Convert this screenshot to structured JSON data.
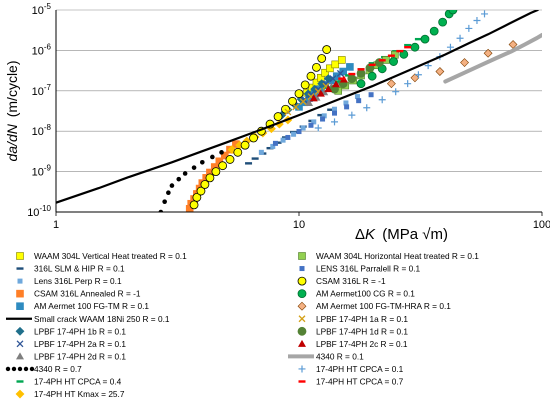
{
  "chart_data": {
    "type": "scatter",
    "title": "",
    "x_scale": "log",
    "y_scale": "log",
    "xlim": [
      1,
      100
    ],
    "ylim": [
      1e-10,
      1e-05
    ],
    "grid": "horizontal major lines",
    "xlabel": {
      "prefix": "Δ",
      "var": "K",
      "unit": "(MPa √m)"
    },
    "ylabel": {
      "var": "da/dN",
      "unit": "(m/cycle)"
    },
    "x_ticks": [
      {
        "value": 1,
        "label": "1"
      },
      {
        "value": 10,
        "label": "10"
      },
      {
        "value": 100,
        "label": "100"
      }
    ],
    "y_ticks": [
      {
        "value": 1e-10,
        "base": "10",
        "exp": "-10"
      },
      {
        "value": 1e-09,
        "base": "10",
        "exp": "-9"
      },
      {
        "value": 1e-08,
        "base": "10",
        "exp": "-8"
      },
      {
        "value": 1e-07,
        "base": "10",
        "exp": "-7"
      },
      {
        "value": 1e-06,
        "base": "10",
        "exp": "-6"
      },
      {
        "value": 1e-05,
        "base": "10",
        "exp": "-5"
      }
    ],
    "legend_placement": "below plot, two columns",
    "series": [
      {
        "name": "WAAM 304L Vertical Heat treated R = 0.1",
        "color": "#FFFF00",
        "stroke": "#7F7F00",
        "marker": "square",
        "col": 0,
        "points": [
          [
            10.8,
            9e-08
          ],
          [
            11.3,
            1.2e-07
          ],
          [
            11.8,
            1.6e-07
          ],
          [
            12.3,
            2.1e-07
          ],
          [
            12.8,
            2.8e-07
          ],
          [
            13.4,
            3.6e-07
          ],
          [
            14.1,
            4.5e-07
          ],
          [
            15.0,
            5.8e-07
          ]
        ]
      },
      {
        "name": "316L SLM & HIP R = 0.1",
        "color": "#1F4E79",
        "marker": "dash",
        "col": 0,
        "points": [
          [
            6.2,
            1.6e-09
          ],
          [
            6.6,
            2.1e-09
          ],
          [
            7.1,
            2.8e-09
          ],
          [
            7.6,
            3.8e-09
          ],
          [
            8.2,
            5.2e-09
          ],
          [
            8.8,
            7e-09
          ],
          [
            9.5,
            9.5e-09
          ],
          [
            10.4,
            1.3e-08
          ],
          [
            11.3,
            1.8e-08
          ],
          [
            12.3,
            2.5e-08
          ],
          [
            13.5,
            3.4e-08
          ]
        ]
      },
      {
        "name": "Lens 316L Perp R = 0.1",
        "color": "#6FA8DC",
        "marker": "square-small",
        "col": 0,
        "points": [
          [
            7.0,
            3e-09
          ],
          [
            7.8,
            4.2e-09
          ],
          [
            8.6,
            6e-09
          ],
          [
            9.5,
            8.4e-09
          ],
          [
            10.4,
            1.2e-08
          ],
          [
            11.5,
            1.7e-08
          ],
          [
            12.7,
            2.4e-08
          ],
          [
            14.0,
            3.5e-08
          ],
          [
            15.6,
            5e-08
          ],
          [
            17.4,
            7.2e-08
          ]
        ]
      },
      {
        "name": "CSAM 316L Annealed R = -1",
        "color": "#FF7F27",
        "marker": "square",
        "col": 0,
        "points": [
          [
            3.55,
            1.2e-10
          ],
          [
            3.6,
            1.6e-10
          ],
          [
            3.7,
            2.1e-10
          ],
          [
            3.8,
            2.8e-10
          ],
          [
            3.9,
            3.8e-10
          ],
          [
            4.0,
            5.2e-10
          ],
          [
            4.15,
            7e-10
          ],
          [
            4.3,
            9.5e-10
          ],
          [
            4.5,
            1.3e-09
          ],
          [
            4.7,
            1.8e-09
          ],
          [
            4.95,
            2.5e-09
          ],
          [
            5.2,
            3.5e-09
          ],
          [
            5.5,
            4.8e-09
          ]
        ]
      },
      {
        "name": "AM Aermet 100 FG-TM R = 0.1",
        "color": "#2E8BC0",
        "marker": "square",
        "col": 0,
        "points": [
          [
            10.0,
            4e-08
          ],
          [
            10.5,
            5.2e-08
          ],
          [
            11.0,
            6.6e-08
          ],
          [
            11.6,
            8.5e-08
          ],
          [
            12.2,
            1.1e-07
          ],
          [
            12.8,
            1.4e-07
          ],
          [
            13.5,
            1.8e-07
          ],
          [
            14.3,
            2.3e-07
          ],
          [
            15.2,
            3e-07
          ],
          [
            16.2,
            3.9e-07
          ]
        ]
      },
      {
        "name": "Small crack WAAM 18Ni 250 R = 0.1",
        "color": "#000000",
        "marker": "curve",
        "col": 0,
        "points": [
          [
            1,
            1.7e-10
          ],
          [
            1.5,
            3.9e-10
          ],
          [
            2,
            7.4e-10
          ],
          [
            3,
            1.7e-09
          ],
          [
            4,
            3.2e-09
          ],
          [
            5,
            5.2e-09
          ],
          [
            7,
            1.1e-08
          ],
          [
            10,
            2.5e-08
          ],
          [
            15,
            6.6e-08
          ],
          [
            20,
            1.3e-07
          ],
          [
            30,
            3.7e-07
          ],
          [
            40,
            7.9e-07
          ],
          [
            50,
            1.5e-06
          ],
          [
            60,
            2.5e-06
          ],
          [
            70,
            4e-06
          ],
          [
            80,
            6e-06
          ],
          [
            90,
            8.5e-06
          ],
          [
            96,
            1e-05
          ]
        ]
      },
      {
        "name": "LPBF 17-4PH 1b R = 0.1",
        "color": "#1F6F8B",
        "marker": "diamond",
        "col": 0,
        "points": [
          [
            8.5,
            2.5e-08
          ],
          [
            9.0,
            3.4e-08
          ],
          [
            9.6,
            4.6e-08
          ],
          [
            10.2,
            6.2e-08
          ],
          [
            10.9,
            8.4e-08
          ],
          [
            11.6,
            1.1e-07
          ],
          [
            12.4,
            1.5e-07
          ],
          [
            13.2,
            2e-07
          ]
        ]
      },
      {
        "name": "LPBF 17-4PH 2a R = 0.1",
        "color": "#2F5597",
        "marker": "x",
        "col": 0,
        "points": [
          [
            10.5,
            6e-08
          ],
          [
            11.2,
            8e-08
          ],
          [
            12.0,
            1.1e-07
          ],
          [
            12.9,
            1.5e-07
          ],
          [
            13.8,
            2e-07
          ],
          [
            14.8,
            2.7e-07
          ]
        ]
      },
      {
        "name": "LPBF 17-4PH 2d R = 0.1",
        "color": "#7F7F7F",
        "marker": "triangle",
        "col": 0,
        "points": [
          [
            11.0,
            5e-08
          ],
          [
            11.8,
            6.8e-08
          ],
          [
            12.7,
            9.2e-08
          ],
          [
            13.6,
            1.25e-07
          ],
          [
            14.7,
            1.7e-07
          ]
        ]
      },
      {
        "name": "4340 R = 0.7",
        "color": "#000000",
        "marker": "circle-dot",
        "col": 0,
        "points": [
          [
            2.7,
            1e-10
          ],
          [
            2.8,
            1.8e-10
          ],
          [
            2.9,
            3e-10
          ],
          [
            3.0,
            4.5e-10
          ],
          [
            3.2,
            6.5e-10
          ],
          [
            3.4,
            9e-10
          ],
          [
            3.7,
            1.25e-09
          ],
          [
            4.0,
            1.7e-09
          ],
          [
            4.4,
            2.3e-09
          ],
          [
            4.8,
            3e-09
          ]
        ]
      },
      {
        "name": "17-4PH HT CPCA  = 0.4",
        "color": "#00A651",
        "marker": "dash",
        "col": 0,
        "points": [
          [
            13.0,
            1.2e-07
          ],
          [
            14.5,
            1.7e-07
          ],
          [
            16.0,
            2.4e-07
          ],
          [
            18.0,
            3.4e-07
          ],
          [
            20.0,
            4.8e-07
          ],
          [
            22.5,
            6.8e-07
          ],
          [
            25.0,
            9.5e-07
          ],
          [
            28.0,
            1.35e-06
          ],
          [
            31.0,
            1.9e-06
          ]
        ]
      },
      {
        "name": "17-4PH HT Kmax = 25.7",
        "color": "#FFC000",
        "marker": "diamond",
        "col": 0,
        "points": [
          [
            5.3,
            3.5e-09
          ],
          [
            5.7,
            4.5e-09
          ],
          [
            6.1,
            5.7e-09
          ],
          [
            6.6,
            7.2e-09
          ],
          [
            7.1,
            9e-09
          ],
          [
            7.7,
            1.15e-08
          ],
          [
            8.3,
            1.5e-08
          ],
          [
            9.0,
            1.9e-08
          ]
        ]
      },
      {
        "name": "WAAM 304L Horizontal Heat treated R = 0.1",
        "color": "#92D050",
        "stroke": "#4F7A28",
        "marker": "square",
        "col": 1,
        "points": [
          [
            14.5,
            1e-07
          ],
          [
            15.5,
            1.35e-07
          ],
          [
            16.7,
            1.8e-07
          ],
          [
            18.0,
            2.4e-07
          ],
          [
            19.5,
            3.2e-07
          ],
          [
            21.0,
            4.3e-07
          ],
          [
            22.8,
            5.8e-07
          ],
          [
            24.8,
            7.8e-07
          ]
        ]
      },
      {
        "name": "LENS 316L Parralell R = 0.1",
        "color": "#4472C4",
        "marker": "square-small",
        "col": 1,
        "points": [
          [
            8.0,
            5e-09
          ],
          [
            9.0,
            7e-09
          ],
          [
            10.0,
            9.8e-09
          ],
          [
            11.2,
            1.4e-08
          ],
          [
            12.5,
            2e-08
          ],
          [
            14.0,
            2.8e-08
          ],
          [
            15.7,
            4e-08
          ],
          [
            17.6,
            5.7e-08
          ],
          [
            19.8,
            8e-08
          ]
        ]
      },
      {
        "name": "CSAM 316L R = -1",
        "color": "#FFFF00",
        "stroke": "#000000",
        "marker": "circle",
        "col": 1,
        "points": [
          [
            3.7,
            1.5e-10
          ],
          [
            3.8,
            2.3e-10
          ],
          [
            3.95,
            3.3e-10
          ],
          [
            4.1,
            4.8e-10
          ],
          [
            4.3,
            7e-10
          ],
          [
            4.55,
            1e-09
          ],
          [
            4.85,
            1.4e-09
          ],
          [
            5.2,
            2e-09
          ],
          [
            5.6,
            3e-09
          ],
          [
            6.0,
            4.5e-09
          ],
          [
            6.5,
            6.8e-09
          ],
          [
            7.0,
            1e-08
          ],
          [
            7.6,
            1.5e-08
          ],
          [
            8.2,
            2.3e-08
          ],
          [
            8.8,
            3.5e-08
          ],
          [
            9.4,
            5.5e-08
          ],
          [
            10.0,
            8.5e-08
          ],
          [
            10.6,
            1.4e-07
          ],
          [
            11.2,
            2.3e-07
          ],
          [
            11.8,
            3.8e-07
          ],
          [
            12.4,
            6.3e-07
          ],
          [
            13.0,
            1.05e-06
          ]
        ]
      },
      {
        "name": "AM Aermet100 CG R = 0.1",
        "color": "#00B050",
        "stroke": "#006B2E",
        "marker": "circle",
        "col": 1,
        "points": [
          [
            18.0,
            1.5e-07
          ],
          [
            20.0,
            2.3e-07
          ],
          [
            22.0,
            3.5e-07
          ],
          [
            24.5,
            5.3e-07
          ],
          [
            27.0,
            8e-07
          ],
          [
            30.0,
            1.2e-06
          ],
          [
            33.0,
            1.9e-06
          ],
          [
            36.0,
            3e-06
          ],
          [
            39.0,
            5e-06
          ],
          [
            41.5,
            8e-06
          ],
          [
            43.0,
            1e-05
          ]
        ]
      },
      {
        "name": "AM Aermet 100 FG-TM-HRA R = 0.1",
        "color": "#F4B183",
        "stroke": "#7F3F00",
        "marker": "diamond",
        "col": 1,
        "points": [
          [
            24.0,
            1.5e-07
          ],
          [
            30.0,
            2.1e-07
          ],
          [
            38.0,
            3e-07
          ],
          [
            48.0,
            5e-07
          ],
          [
            60.0,
            8.5e-07
          ],
          [
            76.0,
            1.4e-06
          ]
        ]
      },
      {
        "name": "LPBF 17-4PH 1a R = 0.1",
        "color": "#D4A017",
        "marker": "x",
        "col": 1,
        "points": [
          [
            9.0,
            3e-08
          ],
          [
            9.7,
            4e-08
          ],
          [
            10.4,
            5.4e-08
          ],
          [
            11.2,
            7.2e-08
          ],
          [
            12.0,
            9.6e-08
          ],
          [
            12.9,
            1.3e-07
          ]
        ]
      },
      {
        "name": "LPBF 17-4PH 1d R = 0.1",
        "color": "#548235",
        "marker": "circle",
        "col": 1,
        "points": [
          [
            14.0,
            1.1e-07
          ],
          [
            15.2,
            1.5e-07
          ],
          [
            16.5,
            2e-07
          ],
          [
            18.0,
            2.7e-07
          ],
          [
            19.6,
            3.7e-07
          ],
          [
            21.4,
            5e-07
          ]
        ]
      },
      {
        "name": "LPBF 17-4PH 2c R = 0.1",
        "color": "#C00000",
        "marker": "triangle",
        "col": 1,
        "points": [
          [
            11.5,
            6.5e-08
          ],
          [
            12.3,
            8.5e-08
          ],
          [
            13.2,
            1.1e-07
          ],
          [
            14.2,
            1.45e-07
          ],
          [
            15.3,
            1.9e-07
          ]
        ]
      },
      {
        "name": "4340 R = 0.1",
        "color": "#A6A6A6",
        "marker": "curve-thick",
        "col": 1,
        "points": [
          [
            40.0,
            1.7e-07
          ],
          [
            48.0,
            2.8e-07
          ],
          [
            56.0,
            4.3e-07
          ],
          [
            65.0,
            6.5e-07
          ],
          [
            75.0,
            9.5e-07
          ],
          [
            85.0,
            1.4e-06
          ],
          [
            95.0,
            2e-06
          ],
          [
            100.0,
            2.4e-06
          ]
        ]
      },
      {
        "name": "17-4PH HT CPCA  = 0.1",
        "color": "#5B9BD5",
        "marker": "plus",
        "col": 1,
        "points": [
          [
            12.0,
            1.2e-08
          ],
          [
            14.0,
            1.7e-08
          ],
          [
            16.5,
            2.5e-08
          ],
          [
            19.0,
            3.8e-08
          ],
          [
            22.0,
            6e-08
          ],
          [
            25.0,
            9.5e-08
          ],
          [
            28.0,
            1.5e-07
          ],
          [
            31.0,
            2.5e-07
          ],
          [
            34.0,
            4.2e-07
          ],
          [
            38.0,
            7e-07
          ],
          [
            42.0,
            1.2e-06
          ],
          [
            46.0,
            2e-06
          ],
          [
            50.0,
            3.5e-06
          ],
          [
            54.0,
            5.5e-06
          ],
          [
            58.0,
            8e-06
          ]
        ]
      },
      {
        "name": "17-4PH HT CPCA  = 0.7",
        "color": "#FF0000",
        "marker": "dash",
        "col": 1,
        "points": [
          [
            15.0,
            2e-07
          ],
          [
            16.5,
            2.6e-07
          ],
          [
            18.0,
            3.4e-07
          ],
          [
            20.0,
            4.4e-07
          ],
          [
            22.0,
            5.7e-07
          ],
          [
            24.0,
            7.4e-07
          ],
          [
            26.0,
            9.6e-07
          ],
          [
            28.0,
            1.2e-06
          ]
        ]
      }
    ]
  }
}
